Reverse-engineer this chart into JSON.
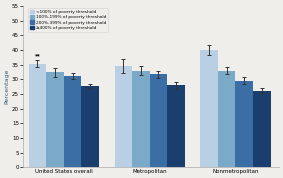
{
  "groups": [
    "United States overall",
    "Metropolitan",
    "Nonmetropolitan"
  ],
  "categories": [
    "<100% of poverty threshold",
    "100%-199% of poverty threshold",
    "200%-399% of poverty threshold",
    "≥400% of poverty threshold"
  ],
  "bar_colors": [
    "#b8cfe4",
    "#7aaac8",
    "#3a6ea5",
    "#1a3f6f"
  ],
  "values": [
    [
      35.3,
      32.5,
      31.2,
      27.8
    ],
    [
      34.6,
      33.0,
      31.8,
      28.1
    ],
    [
      40.0,
      33.0,
      29.5,
      26.2
    ]
  ],
  "errors": [
    [
      1.2,
      1.5,
      1.0,
      0.8
    ],
    [
      2.5,
      1.5,
      1.2,
      1.2
    ],
    [
      1.8,
      1.2,
      1.2,
      0.9
    ]
  ],
  "ylabel": "Percentage",
  "ylim": [
    0,
    55
  ],
  "yticks": [
    0,
    5,
    10,
    15,
    20,
    25,
    30,
    35,
    40,
    45,
    50,
    55
  ],
  "annotation": "**",
  "background_color": "#f0eeea",
  "bar_width": 0.19,
  "group_centers": [
    0.42,
    1.35,
    2.28
  ]
}
